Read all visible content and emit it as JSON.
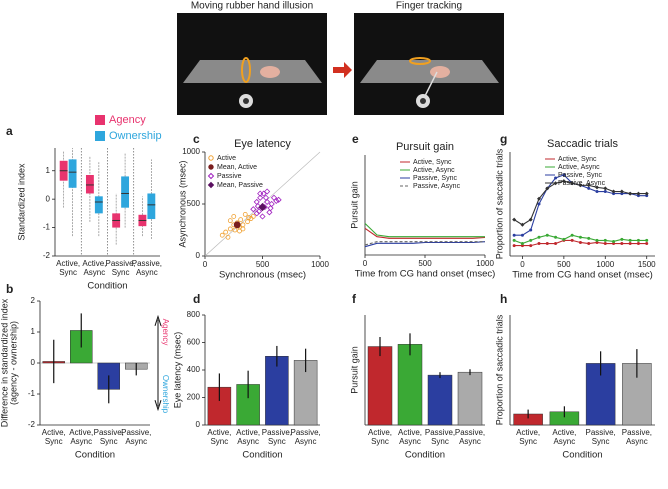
{
  "illustration": {
    "titles": [
      "Moving rubber hand illusion",
      "Finger tracking"
    ]
  },
  "chart_data": [
    {
      "type": "box",
      "label": "a",
      "xlabel": "Condition",
      "ylabel": "Standardized index",
      "categories": [
        "Active,\nSync",
        "Active,\nAsync",
        "Passive,\nSync",
        "Passive,\nAsync"
      ],
      "ylim": [
        -2,
        1.8
      ],
      "yticks": [
        -2,
        -1,
        0,
        1
      ],
      "series": [
        {
          "name": "Agency",
          "color": "#e8336e",
          "low": [
            -0.3,
            -0.8,
            -1.6,
            -1.3
          ],
          "q1": [
            0.65,
            0.2,
            -1.0,
            -0.95
          ],
          "median": [
            1.0,
            0.5,
            -0.75,
            -0.75
          ],
          "q3": [
            1.35,
            0.85,
            -0.5,
            -0.55
          ],
          "high": [
            1.7,
            1.5,
            0.2,
            0.1
          ]
        },
        {
          "name": "Ownership",
          "color": "#2ea6dd",
          "low": [
            -1.3,
            -1.3,
            -1.0,
            -1.4
          ],
          "q1": [
            0.4,
            -0.5,
            -0.3,
            -0.7
          ],
          "median": [
            0.95,
            -0.1,
            0.2,
            -0.2
          ],
          "q3": [
            1.4,
            0.1,
            0.8,
            0.2
          ],
          "high": [
            1.8,
            1.3,
            1.6,
            1.4
          ]
        }
      ]
    },
    {
      "type": "bar",
      "label": "b",
      "xlabel": "Condition",
      "ylabel": "Difference in standardized index\n(agency - ownership)",
      "categories": [
        "Active,\nSync",
        "Active,\nAsync",
        "Passive,\nSync",
        "Passive,\nAsync"
      ],
      "values": [
        0.05,
        1.05,
        -0.85,
        -0.2
      ],
      "errors": [
        0.7,
        0.55,
        0.45,
        0.2
      ],
      "colors": [
        "#c0282d",
        "#3aa935",
        "#2b3ea0",
        "#aaaaaa"
      ],
      "ylim": [
        -2,
        2
      ],
      "yticks": [
        -2,
        -1,
        0,
        1,
        2
      ],
      "annotations": [
        "Agency",
        "Ownership"
      ],
      "annotation_colors": [
        "#e8336e",
        "#2ea6dd"
      ]
    },
    {
      "type": "scatter",
      "label": "c",
      "title": "Eye latency",
      "xlabel": "Synchronous (msec)",
      "ylabel": "Asynchronous (msec)",
      "xlim": [
        0,
        1000
      ],
      "xticks": [
        0,
        500,
        1000
      ],
      "ylim": [
        0,
        1000
      ],
      "yticks": [
        0,
        500,
        1000
      ],
      "series": [
        {
          "name": "Active",
          "color": "#f0a030",
          "marker": "circle",
          "filled": false,
          "x": [
            150,
            200,
            220,
            250,
            260,
            280,
            300,
            310,
            330,
            350,
            370,
            380,
            400,
            250,
            300,
            220,
            180,
            330,
            420,
            290
          ],
          "y": [
            200,
            180,
            260,
            300,
            250,
            320,
            280,
            350,
            300,
            400,
            330,
            370,
            360,
            380,
            240,
            340,
            230,
            260,
            380,
            290
          ]
        },
        {
          "name": "Mean, Active",
          "color": "#7a1f1f",
          "marker": "circle",
          "filled": true,
          "x": [
            280
          ],
          "y": [
            300
          ]
        },
        {
          "name": "Passive",
          "color": "#a020c0",
          "marker": "diamond",
          "filled": false,
          "x": [
            420,
            450,
            470,
            480,
            500,
            510,
            520,
            540,
            560,
            580,
            600,
            620,
            450,
            480,
            530,
            570,
            640,
            500,
            460,
            540
          ],
          "y": [
            450,
            520,
            430,
            560,
            480,
            600,
            470,
            520,
            420,
            500,
            560,
            530,
            410,
            600,
            560,
            460,
            540,
            380,
            480,
            620
          ]
        },
        {
          "name": "Mean, Passive",
          "color": "#5a1060",
          "marker": "diamond",
          "filled": true,
          "x": [
            500
          ],
          "y": [
            470
          ]
        }
      ]
    },
    {
      "type": "bar",
      "label": "d",
      "xlabel": "Condition",
      "ylabel": "Eye latency (msec)",
      "categories": [
        "Active,\nSync",
        "Active,\nAsync",
        "Passive,\nSync",
        "Passive,\nAsync"
      ],
      "values": [
        275,
        295,
        500,
        470
      ],
      "errors": [
        100,
        100,
        75,
        85
      ],
      "colors": [
        "#c0282d",
        "#3aa935",
        "#2b3ea0",
        "#aaaaaa"
      ],
      "ylim": [
        0,
        800
      ],
      "yticks": [
        0,
        200,
        400,
        600,
        800
      ]
    },
    {
      "type": "line",
      "label": "e",
      "title": "Pursuit gain",
      "xlabel": "Time from CG hand onset (msec)",
      "ylabel": "Pursuit gain",
      "xlim": [
        0,
        1000
      ],
      "xticks": [
        0,
        500,
        1000
      ],
      "ylim": [
        0,
        6
      ],
      "x": [
        0,
        100,
        200,
        300,
        400,
        500,
        600,
        700,
        800,
        900,
        1000
      ],
      "series": [
        {
          "name": "Active, Sync",
          "color": "#c0282d",
          "values": [
            1.6,
            1.1,
            1.0,
            1.0,
            1.0,
            1.0,
            1.0,
            1.0,
            1.0,
            1.0,
            1.05
          ]
        },
        {
          "name": "Active, Async",
          "color": "#3aa935",
          "values": [
            1.9,
            1.2,
            1.1,
            1.1,
            1.1,
            1.1,
            1.1,
            1.1,
            1.1,
            1.1,
            1.1
          ]
        },
        {
          "name": "Passive, Sync",
          "color": "#2b3ea0",
          "values": [
            0.5,
            0.7,
            0.7,
            0.7,
            0.7,
            0.75,
            0.75,
            0.75,
            0.75,
            0.75,
            0.8
          ]
        },
        {
          "name": "Passive, Async",
          "color": "#666666",
          "dash": true,
          "values": [
            0.6,
            0.8,
            0.8,
            0.8,
            0.8,
            0.8,
            0.8,
            0.8,
            0.8,
            0.8,
            0.8
          ]
        }
      ]
    },
    {
      "type": "bar",
      "label": "f",
      "xlabel": "Condition",
      "ylabel": "Pursuit gain",
      "categories": [
        "Active,\nSync",
        "Active,\nAsync",
        "Passive,\nSync",
        "Passive,\nAsync"
      ],
      "values": [
        1.07,
        1.1,
        0.68,
        0.72
      ],
      "errors": [
        0.13,
        0.15,
        0.04,
        0.04
      ],
      "colors": [
        "#c0282d",
        "#3aa935",
        "#2b3ea0",
        "#aaaaaa"
      ],
      "ylim": [
        0,
        1.5
      ]
    },
    {
      "type": "line",
      "label": "g",
      "title": "Saccadic trials",
      "xlabel": "Time from CG hand onset (msec)",
      "ylabel": "Proportion of saccadic trials",
      "xlim": [
        -150,
        1600
      ],
      "xticks": [
        0,
        500,
        1000,
        1500
      ],
      "ylim": [
        0,
        1
      ],
      "x": [
        -100,
        0,
        100,
        200,
        300,
        400,
        500,
        600,
        700,
        800,
        900,
        1000,
        1100,
        1200,
        1300,
        1400,
        1500
      ],
      "series": [
        {
          "name": "Active, Sync",
          "color": "#c0282d",
          "marker": "circle",
          "values": [
            0.1,
            0.1,
            0.1,
            0.12,
            0.12,
            0.12,
            0.15,
            0.15,
            0.13,
            0.12,
            0.13,
            0.12,
            0.12,
            0.12,
            0.12,
            0.12,
            0.12
          ]
        },
        {
          "name": "Active, Async",
          "color": "#3aa935",
          "marker": "circle",
          "values": [
            0.15,
            0.12,
            0.15,
            0.18,
            0.2,
            0.18,
            0.16,
            0.2,
            0.18,
            0.17,
            0.15,
            0.15,
            0.14,
            0.16,
            0.15,
            0.15,
            0.15
          ]
        },
        {
          "name": "Passive, Sync",
          "color": "#2b3ea0",
          "marker": "circle",
          "values": [
            0.2,
            0.2,
            0.25,
            0.5,
            0.65,
            0.75,
            0.78,
            0.7,
            0.68,
            0.65,
            0.62,
            0.62,
            0.6,
            0.6,
            0.6,
            0.58,
            0.58
          ]
        },
        {
          "name": "Passive, Async",
          "color": "#333333",
          "marker": "diamond",
          "values": [
            0.35,
            0.3,
            0.35,
            0.55,
            0.65,
            0.7,
            0.72,
            0.7,
            0.68,
            0.68,
            0.66,
            0.65,
            0.62,
            0.62,
            0.6,
            0.6,
            0.6
          ]
        }
      ]
    },
    {
      "type": "bar",
      "label": "h",
      "xlabel": "Condition",
      "ylabel": "Proportion of saccadic trials",
      "categories": [
        "Active,\nSync",
        "Active,\nAsync",
        "Passive,\nSync",
        "Passive,\nAsync"
      ],
      "values": [
        0.1,
        0.12,
        0.56,
        0.56
      ],
      "errors": [
        0.04,
        0.05,
        0.11,
        0.13
      ],
      "colors": [
        "#c0282d",
        "#3aa935",
        "#2b3ea0",
        "#aaaaaa"
      ],
      "ylim": [
        0,
        1
      ]
    }
  ]
}
